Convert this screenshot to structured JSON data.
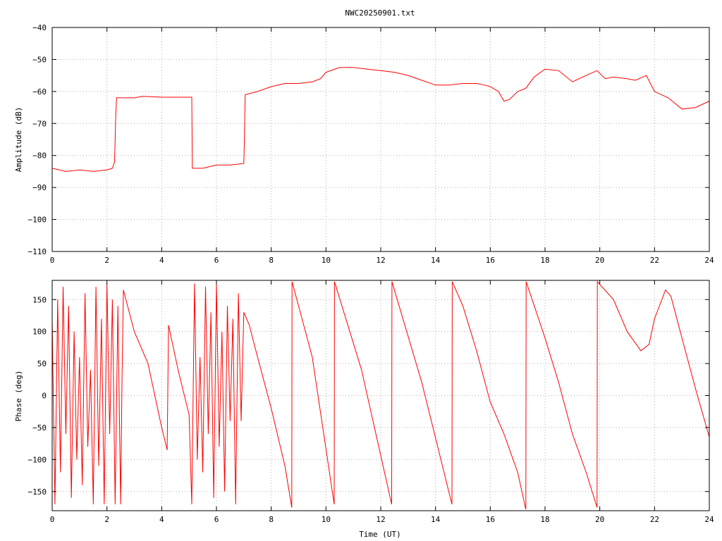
{
  "title": "NWC20250901.txt",
  "colors": {
    "series": "#ff0000",
    "axis": "#000000",
    "grid": "#b0b0b0"
  },
  "chart_data": [
    {
      "type": "line",
      "ylabel": "Amplitude (dB)",
      "xlabel": "",
      "xlim": [
        0,
        24
      ],
      "ylim": [
        -110,
        -40
      ],
      "xticks": [
        0,
        2,
        4,
        6,
        8,
        10,
        12,
        14,
        16,
        18,
        20,
        22,
        24
      ],
      "yticks": [
        -110,
        -100,
        -90,
        -80,
        -70,
        -60,
        -50,
        -40
      ],
      "xtick_labels": [
        "0",
        "2",
        "4",
        "6",
        "8",
        "10",
        "12",
        "14",
        "16",
        "18",
        "20",
        "22",
        "24"
      ],
      "ytick_labels": [
        "−110",
        "−100",
        "−90",
        "−80",
        "−70",
        "−60",
        "−50",
        "−40"
      ],
      "grid": true,
      "series": [
        {
          "x": [
            0,
            0.5,
            1.0,
            1.5,
            2.0,
            2.2,
            2.28,
            2.3,
            2.32,
            2.35,
            3.0,
            3.3,
            4.0,
            4.5,
            5.0,
            5.1,
            5.12,
            5.5,
            6.0,
            6.5,
            7.0,
            7.02,
            7.05,
            7.5,
            8.0,
            8.5,
            9.0,
            9.5,
            9.8,
            10.0,
            10.5,
            11.0,
            11.5,
            12.0,
            12.5,
            13.0,
            13.5,
            14.0,
            14.5,
            15.0,
            15.5,
            15.8,
            16.0,
            16.3,
            16.5,
            16.7,
            17.0,
            17.3,
            17.6,
            18.0,
            18.5,
            19.0,
            19.5,
            19.9,
            20.2,
            20.5,
            21.0,
            21.3,
            21.7,
            22.0,
            22.5,
            23.0,
            23.5,
            24.0
          ],
          "y": [
            -84,
            -85,
            -84.5,
            -85,
            -84.5,
            -84,
            -82,
            -75,
            -68,
            -62,
            -62,
            -61.5,
            -61.8,
            -61.8,
            -61.8,
            -61.8,
            -84,
            -84,
            -83,
            -83,
            -82.5,
            -75,
            -61,
            -60,
            -58.5,
            -57.5,
            -57.5,
            -57,
            -56,
            -54,
            -52.5,
            -52.5,
            -53,
            -53.5,
            -54,
            -55,
            -56.5,
            -58,
            -58,
            -57.5,
            -57.5,
            -58,
            -58.5,
            -60,
            -63,
            -62.5,
            -60,
            -59,
            -55.5,
            -53,
            -53.5,
            -57,
            -55,
            -53.5,
            -56,
            -55.5,
            -56,
            -56.5,
            -55,
            -60,
            -62,
            -65.5,
            -65,
            -63
          ]
        }
      ]
    },
    {
      "type": "line",
      "ylabel": "Phase (deg)",
      "xlabel": "Time (UT)",
      "xlim": [
        0,
        24
      ],
      "ylim": [
        -180,
        180
      ],
      "xticks": [
        0,
        2,
        4,
        6,
        8,
        10,
        12,
        14,
        16,
        18,
        20,
        22,
        24
      ],
      "yticks": [
        -150,
        -100,
        -50,
        0,
        50,
        100,
        150
      ],
      "xtick_labels": [
        "0",
        "2",
        "4",
        "6",
        "8",
        "10",
        "12",
        "14",
        "16",
        "18",
        "20",
        "22",
        "24"
      ],
      "ytick_labels": [
        "−150",
        "−100",
        "−50",
        "0",
        "50",
        "100",
        "150"
      ],
      "grid": true,
      "series": [
        {
          "x": [
            0,
            0.1,
            0.2,
            0.3,
            0.4,
            0.5,
            0.6,
            0.7,
            0.8,
            0.9,
            1.0,
            1.1,
            1.2,
            1.3,
            1.4,
            1.5,
            1.6,
            1.7,
            1.8,
            1.9,
            2.0,
            2.1,
            2.2,
            2.3,
            2.4,
            2.5,
            2.55,
            2.6,
            3.0,
            3.5,
            4.0,
            4.2,
            4.25,
            4.3,
            4.6,
            5.0,
            5.1,
            5.2,
            5.3,
            5.4,
            5.5,
            5.6,
            5.7,
            5.8,
            5.9,
            6.0,
            6.1,
            6.2,
            6.3,
            6.4,
            6.5,
            6.6,
            6.7,
            6.8,
            6.9,
            7.0,
            7.1,
            7.2,
            7.5,
            8.0,
            8.5,
            8.75,
            8.76,
            9.5,
            10.3,
            10.31,
            11.3,
            12.4,
            12.41,
            13.5,
            14.6,
            14.61,
            15.0,
            15.5,
            16.0,
            16.5,
            17.0,
            17.3,
            17.31,
            18.0,
            18.5,
            19.0,
            19.5,
            19.9,
            19.91,
            20.5,
            21.0,
            21.5,
            21.8,
            22.0,
            22.4,
            22.6,
            23.0,
            23.5,
            24.0
          ],
          "y": [
            120,
            -170,
            150,
            -120,
            170,
            -60,
            140,
            -160,
            100,
            -100,
            60,
            -140,
            160,
            -80,
            40,
            -170,
            170,
            -110,
            120,
            -170,
            175,
            -60,
            150,
            -170,
            140,
            -170,
            20,
            165,
            100,
            50,
            -50,
            -85,
            110,
            100,
            40,
            -30,
            -170,
            175,
            -100,
            60,
            -120,
            170,
            -60,
            130,
            -160,
            175,
            -80,
            100,
            -150,
            140,
            -40,
            120,
            -170,
            160,
            -40,
            130,
            120,
            110,
            60,
            -20,
            -110,
            -175,
            178,
            60,
            -170,
            178,
            40,
            -170,
            178,
            20,
            -170,
            178,
            140,
            70,
            -10,
            -60,
            -120,
            -178,
            178,
            90,
            20,
            -60,
            -120,
            -175,
            178,
            150,
            100,
            70,
            80,
            120,
            165,
            155,
            90,
            10,
            -65
          ]
        }
      ]
    }
  ]
}
